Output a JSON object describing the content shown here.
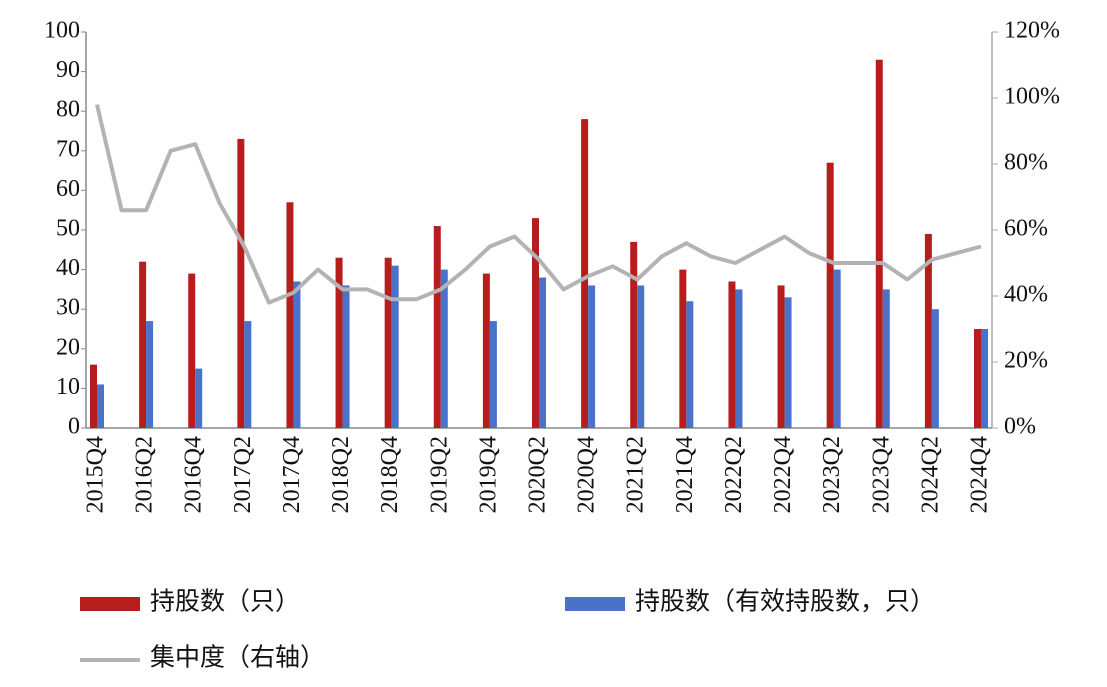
{
  "chart_data": {
    "type": "bar",
    "categories": [
      "2015Q4",
      null,
      "2016Q2",
      null,
      "2016Q4",
      null,
      "2017Q2",
      null,
      "2017Q4",
      null,
      "2018Q2",
      null,
      "2018Q4",
      null,
      "2019Q2",
      null,
      "2019Q4",
      null,
      "2020Q2",
      null,
      "2020Q4",
      null,
      "2021Q2",
      null,
      "2021Q4",
      null,
      "2022Q2",
      null,
      "2022Q4",
      null,
      "2023Q2",
      null,
      "2023Q4",
      null,
      "2024Q2",
      null,
      "2024Q4"
    ],
    "series": [
      {
        "name": "持股数（只）",
        "color": "#b81d1d",
        "type": "bar",
        "values": [
          16,
          null,
          42,
          null,
          39,
          null,
          73,
          null,
          57,
          null,
          43,
          null,
          43,
          null,
          51,
          null,
          39,
          null,
          53,
          null,
          78,
          null,
          47,
          null,
          40,
          null,
          37,
          null,
          36,
          null,
          67,
          null,
          93,
          null,
          49,
          null,
          25
        ]
      },
      {
        "name": "持股数（有效持股数，只）",
        "color": "#4a72c8",
        "type": "bar",
        "values": [
          11,
          null,
          27,
          null,
          15,
          null,
          27,
          null,
          37,
          null,
          36,
          null,
          41,
          null,
          40,
          null,
          27,
          null,
          38,
          null,
          36,
          null,
          36,
          null,
          32,
          null,
          35,
          null,
          33,
          null,
          40,
          null,
          35,
          null,
          30,
          null,
          25
        ]
      },
      {
        "name": "集中度（右轴）",
        "color": "#b3b3b3",
        "type": "line",
        "axis": "y2",
        "values": [
          98,
          66,
          66,
          84,
          86,
          68,
          55,
          38,
          41,
          48,
          42,
          42,
          39,
          39,
          42,
          48,
          55,
          58,
          51,
          42,
          46,
          49,
          45,
          52,
          56,
          52,
          50,
          54,
          58,
          53,
          50,
          50,
          50,
          45,
          51,
          53,
          55
        ]
      }
    ],
    "ylim": [
      0,
      100
    ],
    "yticks": [
      0,
      10,
      20,
      30,
      40,
      50,
      60,
      70,
      80,
      90,
      100
    ],
    "y2lim": [
      0,
      120
    ],
    "y2ticks": [
      {
        "value": 0,
        "label": "0%"
      },
      {
        "value": 20,
        "label": "20%"
      },
      {
        "value": 40,
        "label": "40%"
      },
      {
        "value": 60,
        "label": "60%"
      },
      {
        "value": 80,
        "label": "80%"
      },
      {
        "value": 100,
        "label": "100%"
      },
      {
        "value": 120,
        "label": "120%"
      }
    ],
    "grid": false
  }
}
